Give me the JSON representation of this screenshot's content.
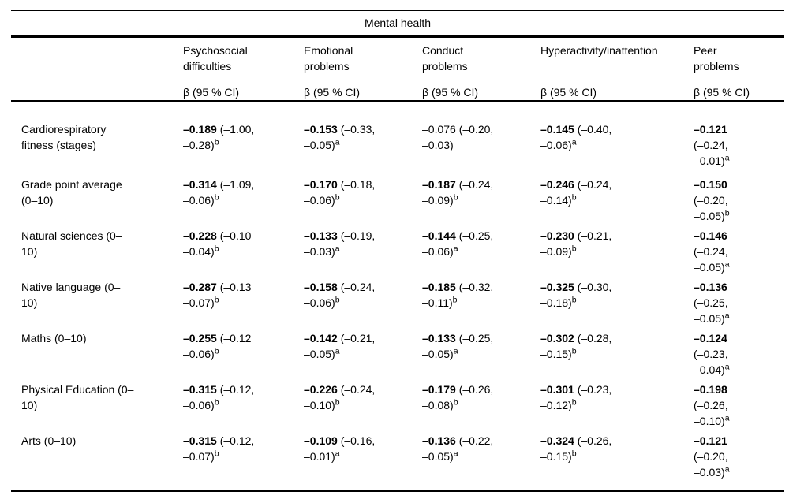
{
  "table": {
    "spanner": "Mental health",
    "beta_header": "β (95 % CI)",
    "columns": [
      {
        "label_lines": [
          "Psychosocial",
          "difficulties"
        ]
      },
      {
        "label_lines": [
          "Emotional",
          "problems"
        ]
      },
      {
        "label_lines": [
          "Conduct",
          "problems"
        ]
      },
      {
        "label_lines": [
          "Hyperactivity/inattention"
        ]
      },
      {
        "label_lines": [
          "Peer",
          "problems"
        ]
      }
    ],
    "rows": [
      {
        "label_lines": [
          "Cardiorespiratory",
          "fitness (stages)"
        ],
        "cells": [
          {
            "beta": "–0.189",
            "bold": true,
            "ci_lines": [
              " (–1.00,",
              "–0.28)"
            ],
            "sup": "b"
          },
          {
            "beta": "–0.153",
            "bold": true,
            "ci_lines": [
              " (–0.33,",
              "–0.05)"
            ],
            "sup": "a"
          },
          {
            "beta": "–0.076",
            "bold": false,
            "ci_lines": [
              " (–0.20,",
              "–0.03)"
            ],
            "sup": ""
          },
          {
            "beta": "–0.145",
            "bold": true,
            "ci_lines": [
              " (–0.40,",
              "–0.06)"
            ],
            "sup": "a"
          },
          {
            "beta": "–0.121",
            "bold": true,
            "ci_lines": [
              "",
              "(–0.24,",
              "–0.01)"
            ],
            "sup": "a"
          }
        ]
      },
      {
        "label_lines": [
          "Grade point average",
          "(0–10)"
        ],
        "cells": [
          {
            "beta": "–0.314",
            "bold": true,
            "ci_lines": [
              " (–1.09,",
              "–0.06)"
            ],
            "sup": "b"
          },
          {
            "beta": "–0.170",
            "bold": true,
            "ci_lines": [
              " (–0.18,",
              "–0.06)"
            ],
            "sup": "b"
          },
          {
            "beta": "–0.187",
            "bold": true,
            "ci_lines": [
              " (–0.24,",
              "–0.09)"
            ],
            "sup": "b"
          },
          {
            "beta": "–0.246",
            "bold": true,
            "ci_lines": [
              " (–0.24,",
              "–0.14)"
            ],
            "sup": "b"
          },
          {
            "beta": "–0.150",
            "bold": true,
            "ci_lines": [
              "",
              "(–0.20,",
              "–0.05)"
            ],
            "sup": "b"
          }
        ]
      },
      {
        "label_lines": [
          "Natural sciences (0–",
          "10)"
        ],
        "cells": [
          {
            "beta": "–0.228",
            "bold": true,
            "ci_lines": [
              " (–0.10",
              "–0.04)"
            ],
            "sup": "b"
          },
          {
            "beta": "–0.133",
            "bold": true,
            "ci_lines": [
              " (–0.19,",
              "–0.03)"
            ],
            "sup": "a"
          },
          {
            "beta": "–0.144",
            "bold": true,
            "ci_lines": [
              " (–0.25,",
              "–0.06)"
            ],
            "sup": "a"
          },
          {
            "beta": "–0.230",
            "bold": true,
            "ci_lines": [
              " (–0.21,",
              "–0.09)"
            ],
            "sup": "b"
          },
          {
            "beta": "–0.146",
            "bold": true,
            "ci_lines": [
              "",
              "(–0.24,",
              "–0.05)"
            ],
            "sup": "a"
          }
        ]
      },
      {
        "label_lines": [
          "Native language (0–",
          "10)"
        ],
        "cells": [
          {
            "beta": "–0.287",
            "bold": true,
            "ci_lines": [
              " (–0.13",
              "–0.07)"
            ],
            "sup": "b"
          },
          {
            "beta": "–0.158",
            "bold": true,
            "ci_lines": [
              " (–0.24,",
              "–0.06)"
            ],
            "sup": "b"
          },
          {
            "beta": "–0.185",
            "bold": true,
            "ci_lines": [
              " (–0.32,",
              "–0.11)"
            ],
            "sup": "b"
          },
          {
            "beta": "–0.325",
            "bold": true,
            "ci_lines": [
              " (–0.30,",
              "–0.18)"
            ],
            "sup": "b"
          },
          {
            "beta": "–0.136",
            "bold": true,
            "ci_lines": [
              "",
              "(–0.25,",
              "–0.05)"
            ],
            "sup": "a"
          }
        ]
      },
      {
        "label_lines": [
          "Maths (0–10)"
        ],
        "cells": [
          {
            "beta": "–0.255",
            "bold": true,
            "ci_lines": [
              " (–0.12",
              "–0.06)"
            ],
            "sup": "b"
          },
          {
            "beta": "–0.142",
            "bold": true,
            "ci_lines": [
              " (–0.21,",
              "–0.05)"
            ],
            "sup": "a"
          },
          {
            "beta": "–0.133",
            "bold": true,
            "ci_lines": [
              " (–0.25,",
              "–0.05)"
            ],
            "sup": "a"
          },
          {
            "beta": "–0.302",
            "bold": true,
            "ci_lines": [
              " (–0.28,",
              "–0.15)"
            ],
            "sup": "b"
          },
          {
            "beta": "–0.124",
            "bold": true,
            "ci_lines": [
              "",
              "(–0.23,",
              "–0.04)"
            ],
            "sup": "a"
          }
        ]
      },
      {
        "label_lines": [
          "Physical Education (0–",
          "10)"
        ],
        "cells": [
          {
            "beta": "–0.315",
            "bold": true,
            "ci_lines": [
              " (–0.12,",
              "–0.06)"
            ],
            "sup": "b"
          },
          {
            "beta": "–0.226",
            "bold": true,
            "ci_lines": [
              " (–0.24,",
              "–0.10)"
            ],
            "sup": "b"
          },
          {
            "beta": "–0.179",
            "bold": true,
            "ci_lines": [
              " (–0.26,",
              "–0.08)"
            ],
            "sup": "b"
          },
          {
            "beta": "–0.301",
            "bold": true,
            "ci_lines": [
              " (–0.23,",
              "–0.12)"
            ],
            "sup": "b"
          },
          {
            "beta": "–0.198",
            "bold": true,
            "ci_lines": [
              "",
              "(–0.26,",
              "–0.10)"
            ],
            "sup": "a"
          }
        ]
      },
      {
        "label_lines": [
          "Arts (0–10)"
        ],
        "cells": [
          {
            "beta": "–0.315",
            "bold": true,
            "ci_lines": [
              " (–0.12,",
              "–0.07)"
            ],
            "sup": "b"
          },
          {
            "beta": "–0.109",
            "bold": true,
            "ci_lines": [
              " (–0.16,",
              "–0.01)"
            ],
            "sup": "a"
          },
          {
            "beta": "–0.136",
            "bold": true,
            "ci_lines": [
              " (–0.22,",
              "–0.05)"
            ],
            "sup": "a"
          },
          {
            "beta": "–0.324",
            "bold": true,
            "ci_lines": [
              " (–0.26,",
              "–0.15)"
            ],
            "sup": "b"
          },
          {
            "beta": "–0.121",
            "bold": true,
            "ci_lines": [
              "",
              "(–0.20,",
              "–0.03)"
            ],
            "sup": "a"
          }
        ]
      }
    ]
  }
}
